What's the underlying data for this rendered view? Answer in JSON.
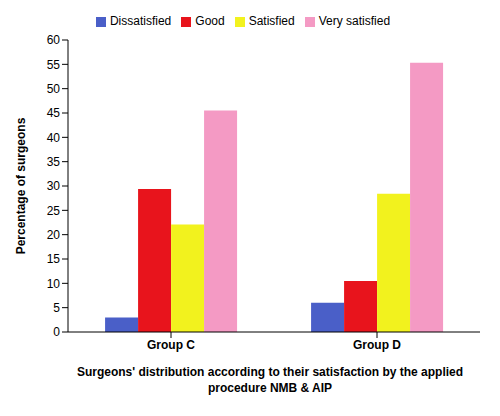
{
  "chart_data": {
    "type": "bar",
    "categories": [
      "Group C",
      "Group D"
    ],
    "series": [
      {
        "name": "Dissatisfied",
        "color": "#4a5fc8",
        "values": [
          3,
          6
        ]
      },
      {
        "name": "Good",
        "color": "#e8141c",
        "values": [
          29.4,
          10.5
        ]
      },
      {
        "name": "Satisfied",
        "color": "#f2f21e",
        "values": [
          22.1,
          28.4
        ]
      },
      {
        "name": "Very satisfied",
        "color": "#f49ac4",
        "values": [
          45.5,
          55.3
        ]
      }
    ],
    "y_label": "Percentage of surgeons",
    "x_label": "Surgeons' distribution according to their satisfaction by the applied procedure NMB & AIP",
    "ylim": [
      0,
      60
    ],
    "yticks": [
      0,
      5,
      10,
      15,
      20,
      25,
      30,
      35,
      40,
      45,
      50,
      55,
      60
    ],
    "grid": false,
    "legend": "top"
  }
}
